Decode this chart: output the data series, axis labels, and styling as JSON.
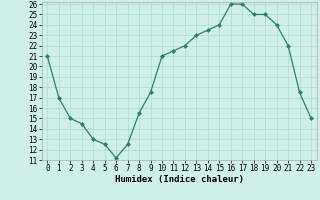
{
  "x": [
    0,
    1,
    2,
    3,
    4,
    5,
    6,
    7,
    8,
    9,
    10,
    11,
    12,
    13,
    14,
    15,
    16,
    17,
    18,
    19,
    20,
    21,
    22,
    23
  ],
  "y": [
    21,
    17,
    15,
    14.5,
    13,
    12.5,
    11.2,
    12.5,
    15.5,
    17.5,
    21,
    21.5,
    22,
    23,
    23.5,
    24,
    26,
    26,
    25,
    25,
    24,
    22,
    17.5,
    15
  ],
  "line_color": "#2e7d6e",
  "marker_color": "#2e7d6e",
  "bg_color": "#cff0ea",
  "grid_color": "#b0d8d0",
  "xlabel": "Humidex (Indice chaleur)",
  "xlim": [
    -0.5,
    23.5
  ],
  "ylim": [
    11,
    26.2
  ],
  "yticks": [
    11,
    12,
    13,
    14,
    15,
    16,
    17,
    18,
    19,
    20,
    21,
    22,
    23,
    24,
    25,
    26
  ],
  "xticks": [
    0,
    1,
    2,
    3,
    4,
    5,
    6,
    7,
    8,
    9,
    10,
    11,
    12,
    13,
    14,
    15,
    16,
    17,
    18,
    19,
    20,
    21,
    22,
    23
  ],
  "label_fontsize": 6.5,
  "tick_fontsize": 5.5
}
